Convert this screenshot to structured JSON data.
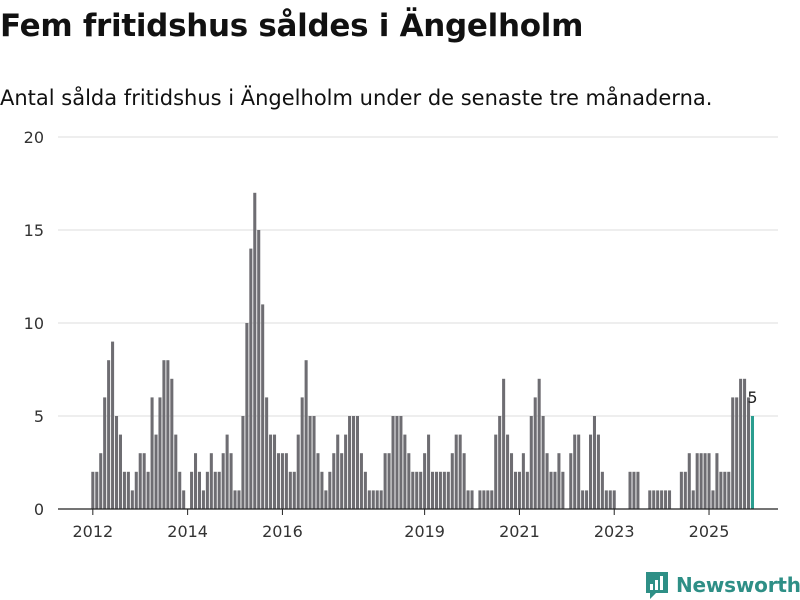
{
  "title": "Fem fritidshus såldes i Ängelholm",
  "subtitle": "Antal sålda fritidshus i Ängelholm under de senaste tre månaderna.",
  "brand": {
    "name": "Newsworthy",
    "icon": "newsworthy-logo-icon",
    "color": "#2e8f86"
  },
  "colors": {
    "bar": "#6e6d72",
    "highlight": "#2a9d8f",
    "grid": "#dddddd",
    "axis": "#222222",
    "text": "#333333"
  },
  "chart_data": {
    "type": "bar",
    "title": "Fem fritidshus såldes i Ängelholm",
    "xlabel": "",
    "ylabel": "",
    "ylim": [
      0,
      20
    ],
    "yticks": [
      0,
      5,
      10,
      15,
      20
    ],
    "xticks": [
      {
        "label": "2012",
        "index": 0
      },
      {
        "label": "2014",
        "index": 24
      },
      {
        "label": "2016",
        "index": 48
      },
      {
        "label": "2019",
        "index": 84
      },
      {
        "label": "2021",
        "index": 108
      },
      {
        "label": "2023",
        "index": 132
      },
      {
        "label": "2025",
        "index": 156
      }
    ],
    "start": "2012-01",
    "granularity": "month",
    "values": [
      2,
      2,
      3,
      6,
      8,
      9,
      5,
      4,
      2,
      2,
      1,
      2,
      3,
      3,
      2,
      6,
      4,
      6,
      8,
      8,
      7,
      4,
      2,
      1,
      0,
      2,
      3,
      2,
      1,
      2,
      3,
      2,
      2,
      3,
      4,
      3,
      1,
      1,
      5,
      10,
      14,
      17,
      15,
      11,
      6,
      4,
      4,
      3,
      3,
      3,
      2,
      2,
      4,
      6,
      8,
      5,
      5,
      3,
      2,
      1,
      2,
      3,
      4,
      3,
      4,
      5,
      5,
      5,
      3,
      2,
      1,
      1,
      1,
      1,
      3,
      3,
      5,
      5,
      5,
      4,
      3,
      2,
      2,
      2,
      3,
      4,
      2,
      2,
      2,
      2,
      2,
      3,
      4,
      4,
      3,
      1,
      1,
      0,
      1,
      1,
      1,
      1,
      4,
      5,
      7,
      4,
      3,
      2,
      2,
      3,
      2,
      5,
      6,
      7,
      5,
      3,
      2,
      2,
      3,
      2,
      0,
      3,
      4,
      4,
      1,
      1,
      4,
      5,
      4,
      2,
      1,
      1,
      1,
      0,
      0,
      0,
      2,
      2,
      2,
      0,
      0,
      1,
      1,
      1,
      1,
      1,
      1,
      0,
      0,
      2,
      2,
      3,
      1,
      3,
      3,
      3,
      3,
      1,
      3,
      2,
      2,
      2,
      6,
      6,
      7,
      7,
      6,
      5
    ],
    "highlight": {
      "index": 167,
      "label": "5"
    }
  }
}
